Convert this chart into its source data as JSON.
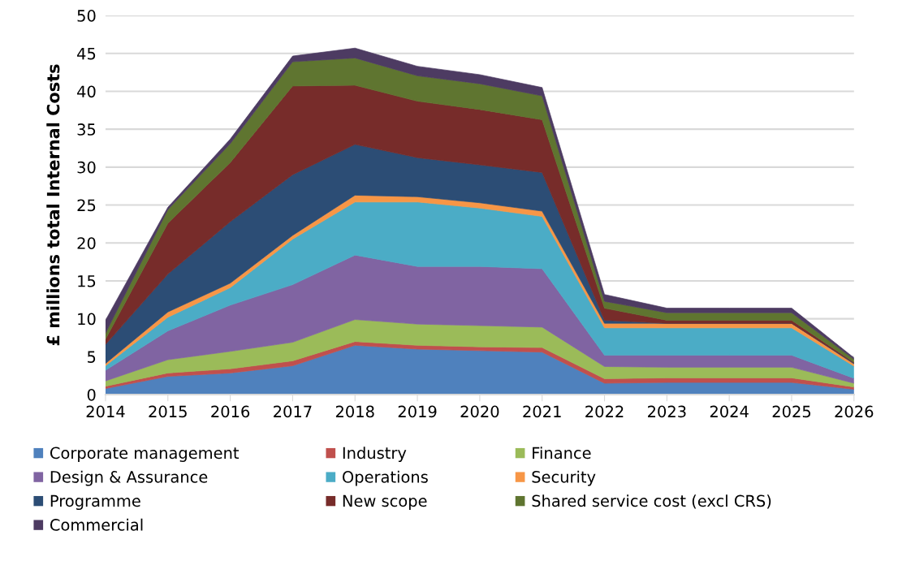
{
  "chart_data": {
    "type": "area",
    "stacked": true,
    "ylabel": "£ millions total Internal Costs",
    "x": [
      2014,
      2015,
      2016,
      2017,
      2018,
      2019,
      2020,
      2021,
      2022,
      2023,
      2024,
      2025,
      2026
    ],
    "xlim": [
      2014,
      2026
    ],
    "xticks": [
      2014,
      2015,
      2016,
      2017,
      2018,
      2019,
      2020,
      2021,
      2022,
      2023,
      2024,
      2025,
      2026
    ],
    "ylim": [
      0,
      50
    ],
    "yticks": [
      0,
      5,
      10,
      15,
      20,
      25,
      30,
      35,
      40,
      45,
      50
    ],
    "grid": "y",
    "legend": "bottom",
    "series": [
      {
        "name": "Corporate management",
        "color": "#4f81bd",
        "values": [
          0.8,
          2.4,
          2.85,
          3.8,
          6.5,
          6.0,
          5.8,
          5.6,
          1.5,
          1.6,
          1.6,
          1.6,
          0.7
        ]
      },
      {
        "name": "Industry",
        "color": "#c0504d",
        "values": [
          0.3,
          0.45,
          0.55,
          0.65,
          0.5,
          0.5,
          0.5,
          0.6,
          0.6,
          0.6,
          0.6,
          0.6,
          0.3
        ]
      },
      {
        "name": "Finance",
        "color": "#9bbb59",
        "values": [
          0.7,
          1.75,
          2.3,
          2.45,
          2.9,
          2.8,
          2.8,
          2.7,
          1.6,
          1.4,
          1.4,
          1.4,
          0.5
        ]
      },
      {
        "name": "Design & Assurance",
        "color": "#8064a2",
        "values": [
          1.4,
          3.8,
          6.1,
          7.6,
          8.5,
          7.6,
          7.8,
          7.7,
          1.5,
          1.6,
          1.6,
          1.6,
          0.65
        ]
      },
      {
        "name": "Operations",
        "color": "#4bacc6",
        "values": [
          0.6,
          1.8,
          2.3,
          6.0,
          7.0,
          8.5,
          7.7,
          6.9,
          3.6,
          3.6,
          3.6,
          3.6,
          1.6
        ]
      },
      {
        "name": "Security",
        "color": "#f79646",
        "values": [
          0.3,
          0.7,
          0.6,
          0.5,
          0.9,
          0.7,
          0.7,
          0.7,
          0.6,
          0.6,
          0.6,
          0.6,
          0.3
        ]
      },
      {
        "name": "Programme",
        "color": "#2c4d75",
        "values": [
          2.5,
          5.0,
          8.1,
          8.0,
          6.7,
          5.15,
          5.0,
          5.1,
          0.4,
          0,
          0,
          0,
          0.1
        ]
      },
      {
        "name": "New scope",
        "color": "#772c2a",
        "values": [
          0.7,
          6.7,
          7.8,
          11.7,
          7.8,
          7.45,
          7.3,
          6.95,
          1.6,
          0.4,
          0.4,
          0.4,
          0.1
        ]
      },
      {
        "name": "Shared service cost (excl CRS)",
        "color": "#5f7530",
        "values": [
          0.8,
          1.8,
          2.5,
          3.2,
          3.6,
          3.35,
          3.4,
          3.15,
          0.9,
          1.0,
          1.0,
          1.0,
          0.4
        ]
      },
      {
        "name": "Commercial",
        "color": "#4d3b62",
        "values": [
          1.7,
          0.3,
          0.6,
          0.75,
          1.3,
          1.25,
          1.2,
          1.1,
          0.9,
          0.6,
          0.6,
          0.6,
          0.2
        ]
      }
    ]
  }
}
